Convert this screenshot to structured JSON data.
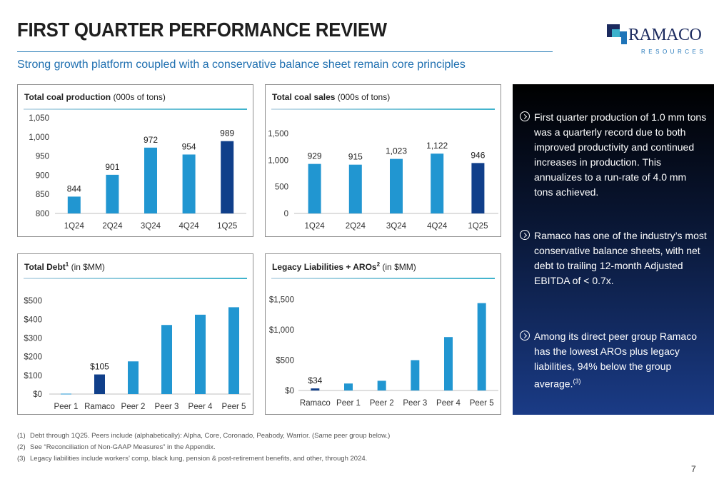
{
  "header": {
    "title": "FIRST QUARTER PERFORMANCE REVIEW",
    "subtitle": "Strong growth platform coupled with a conservative balance sheet remain core principles"
  },
  "logo": {
    "word": "RAMACO",
    "sub": "RESOURCES"
  },
  "colors": {
    "bar": "#2196d1",
    "highlight": "#103f8a",
    "accent": "#1e6fb0"
  },
  "panels": {
    "production": {
      "title_bold": "Total coal production",
      "title_rest": " (000s of tons)"
    },
    "sales": {
      "title_bold": "Total coal sales",
      "title_rest": " (000s of tons)"
    },
    "debt": {
      "title_bold": "Total Debt",
      "sup": "1",
      "title_rest": " (in $MM)"
    },
    "legacy": {
      "title_bold": "Legacy Liabilities + AROs",
      "sup": "2",
      "title_rest": " (in $MM)"
    }
  },
  "chart_data": [
    {
      "id": "production",
      "type": "bar",
      "categories": [
        "1Q24",
        "2Q24",
        "3Q24",
        "4Q24",
        "1Q25"
      ],
      "values": [
        844,
        901,
        972,
        954,
        989
      ],
      "data_labels": [
        "844",
        "901",
        "972",
        "954",
        "989"
      ],
      "highlight_index": 4,
      "ylim": [
        800,
        1050
      ],
      "yticks": [
        800,
        850,
        900,
        950,
        1000,
        1050
      ],
      "ytick_labels": [
        "800",
        "850",
        "900",
        "950",
        "1,000",
        "1,050"
      ]
    },
    {
      "id": "sales",
      "type": "bar",
      "categories": [
        "1Q24",
        "2Q24",
        "3Q24",
        "4Q24",
        "1Q25"
      ],
      "values": [
        929,
        915,
        1023,
        1122,
        946
      ],
      "data_labels": [
        "929",
        "915",
        "1,023",
        "1,122",
        "946"
      ],
      "highlight_index": 4,
      "ylim": [
        0,
        1500
      ],
      "yticks": [
        0,
        500,
        1000,
        1500
      ],
      "ytick_labels": [
        "0",
        "500",
        "1,000",
        "1,500"
      ]
    },
    {
      "id": "debt",
      "type": "bar",
      "categories": [
        "Peer 1",
        "Ramaco",
        "Peer 2",
        "Peer 3",
        "Peer 4",
        "Peer 5"
      ],
      "values": [
        2,
        105,
        175,
        370,
        425,
        465
      ],
      "data_labels": [
        "",
        "$105",
        "",
        "",
        "",
        ""
      ],
      "highlight_index": 1,
      "ylim": [
        0,
        520
      ],
      "yticks": [
        0,
        100,
        200,
        300,
        400,
        500
      ],
      "ytick_labels": [
        "$0",
        "$100",
        "$200",
        "$300",
        "$400",
        "$500"
      ]
    },
    {
      "id": "legacy",
      "type": "bar",
      "categories": [
        "Ramaco",
        "Peer 1",
        "Peer 2",
        "Peer 3",
        "Peer 4",
        "Peer 5"
      ],
      "values": [
        34,
        115,
        160,
        500,
        880,
        1440
      ],
      "data_labels": [
        "$34",
        "",
        "",
        "",
        "",
        ""
      ],
      "highlight_index": 0,
      "ylim": [
        0,
        1600
      ],
      "yticks": [
        0,
        500,
        1000,
        1500
      ],
      "ytick_labels": [
        "$0",
        "$500",
        "$1,000",
        "$1,500"
      ]
    }
  ],
  "bullets": [
    {
      "text": "First quarter production of 1.0 mm tons was a quarterly record due to both improved productivity and continued increases in production. This annualizes to a run-rate of 4.0 mm tons achieved."
    },
    {
      "text": "Ramaco has one of the industry’s most conservative balance sheets, with net debt to trailing 12-month Adjusted EBITDA of < 0.7x."
    },
    {
      "text": "Among its direct peer group Ramaco has the lowest AROs plus legacy liabilities, 94% below the group average.",
      "sup": "(3)"
    }
  ],
  "footnotes": [
    {
      "num": "(1)",
      "text": "Debt through 1Q25. Peers include (alphabetically): Alpha, Core, Coronado, Peabody, Warrior. (Same peer group below.)"
    },
    {
      "num": "(2)",
      "text": "See “Reconciliation of Non-GAAP Measures” in the Appendix."
    },
    {
      "num": "(3)",
      "text": "Legacy liabilities include workers’ comp, black lung, pension & post-retirement benefits, and other, through 2024."
    }
  ],
  "page_number": "7"
}
